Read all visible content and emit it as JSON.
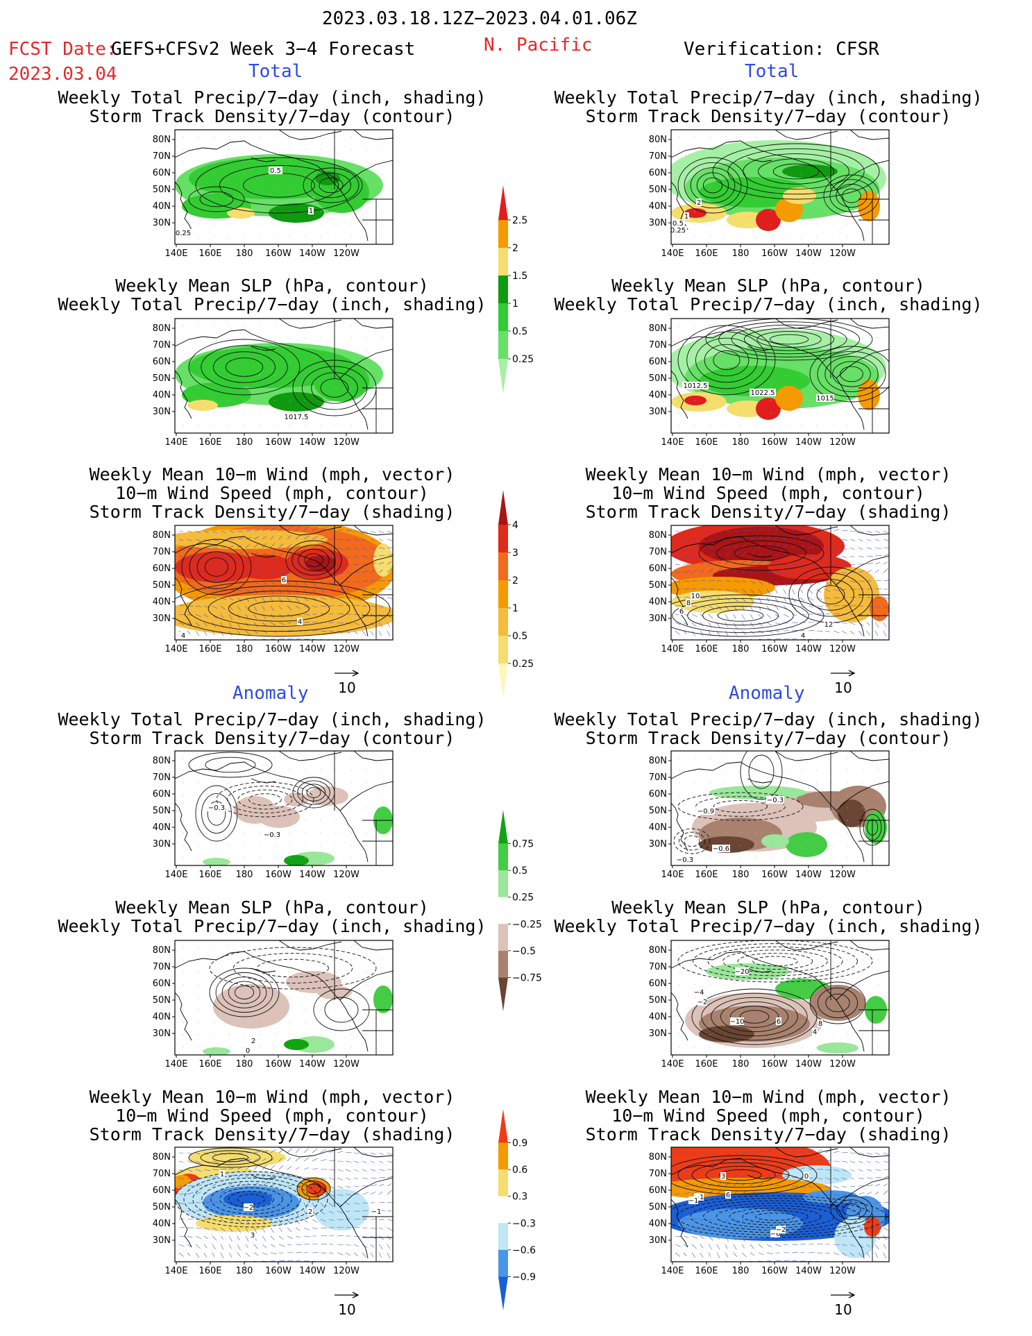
{
  "header": {
    "period": "2023.03.18.12Z−2023.04.01.06Z",
    "fcst_label": "FCST Date:",
    "fcst_date": "2023.03.04",
    "model": "GEFS+CFSv2 Week 3−4 Forecast",
    "region": "N. Pacific",
    "verification": "Verification: CFSR"
  },
  "sections": {
    "total": "Total",
    "anomaly": "Anomaly"
  },
  "titles": {
    "precip_storm": [
      "Weekly Total Precip/7−day (inch, shading)",
      "Storm Track Density/7−day (contour)"
    ],
    "slp_precip": [
      "Weekly Mean SLP (hPa, contour)",
      "Weekly Total Precip/7−day (inch, shading)"
    ],
    "wind_storm": [
      "Weekly Mean 10−m Wind (mph, vector)",
      "10−m Wind Speed (mph, contour)",
      "Storm Track Density/7−day (shading)"
    ]
  },
  "axes": {
    "lat_ticks": [
      "80N",
      "70N",
      "60N",
      "50N",
      "40N",
      "30N"
    ],
    "lon_ticks": [
      "140E",
      "160E",
      "180",
      "160W",
      "140W",
      "120W"
    ]
  },
  "vector_ref": "10",
  "colorbars": [
    {
      "id": "precip_total",
      "labels": [
        "2.5",
        "2",
        "1.5",
        "1",
        "0.5",
        "0.25"
      ],
      "colors": [
        "#e01e1e",
        "#f59a00",
        "#f5dd6e",
        "#0f9a0f",
        "#33cc33",
        "#66e066",
        "#a6f0a6"
      ]
    },
    {
      "id": "storm_total",
      "labels": [
        "4",
        "3",
        "2",
        "1",
        "0.5",
        "0.25"
      ],
      "colors": [
        "#aa1414",
        "#e02a1a",
        "#f26a1a",
        "#f59a00",
        "#f5bb3a",
        "#f5dd6e",
        "#fff6b8"
      ]
    },
    {
      "id": "precip_anom",
      "labels": [
        "0.75",
        "0.5",
        "0.25",
        "−0.25",
        "−0.5",
        "−0.75"
      ],
      "colors": [
        "#12a312",
        "#44cc44",
        "#9ae69a",
        "#ffffff",
        "#dcc2b8",
        "#a8826f",
        "#6b4533"
      ]
    },
    {
      "id": "storm_anom",
      "labels": [
        "0.9",
        "0.6",
        "0.3",
        "−0.3",
        "−0.6",
        "−0.9"
      ],
      "colors": [
        "#f03c14",
        "#f59a00",
        "#f5dd6e",
        "#ffffff",
        "#bfe6f5",
        "#4a96e6",
        "#1a5fd6"
      ]
    }
  ],
  "panel_labels": {
    "L1": [
      "0.5",
      "1",
      "0.25"
    ],
    "R1": [
      "2",
      "0.5",
      "0.25",
      "1"
    ],
    "L2": [
      "1017.5"
    ],
    "R2": [
      "1012.5",
      "1022.5",
      "1015"
    ],
    "L3": [
      "6",
      "4",
      "4"
    ],
    "R3": [
      "10",
      "8",
      "6",
      "4",
      "12"
    ],
    "L4": [
      "−0.3",
      "−0.3"
    ],
    "R4": [
      "−0.9",
      "−0.3",
      "−0.6",
      "−0.3"
    ],
    "L5": [
      "2",
      "0"
    ],
    "R5": [
      "−20",
      "−4",
      "−2",
      "−10",
      "6",
      "4",
      "8"
    ],
    "L6": [
      "1",
      "−2",
      "2",
      "−1",
      "3"
    ],
    "R6": [
      "3",
      "0",
      "6",
      "−1",
      "−1",
      "−6",
      "−2"
    ]
  }
}
